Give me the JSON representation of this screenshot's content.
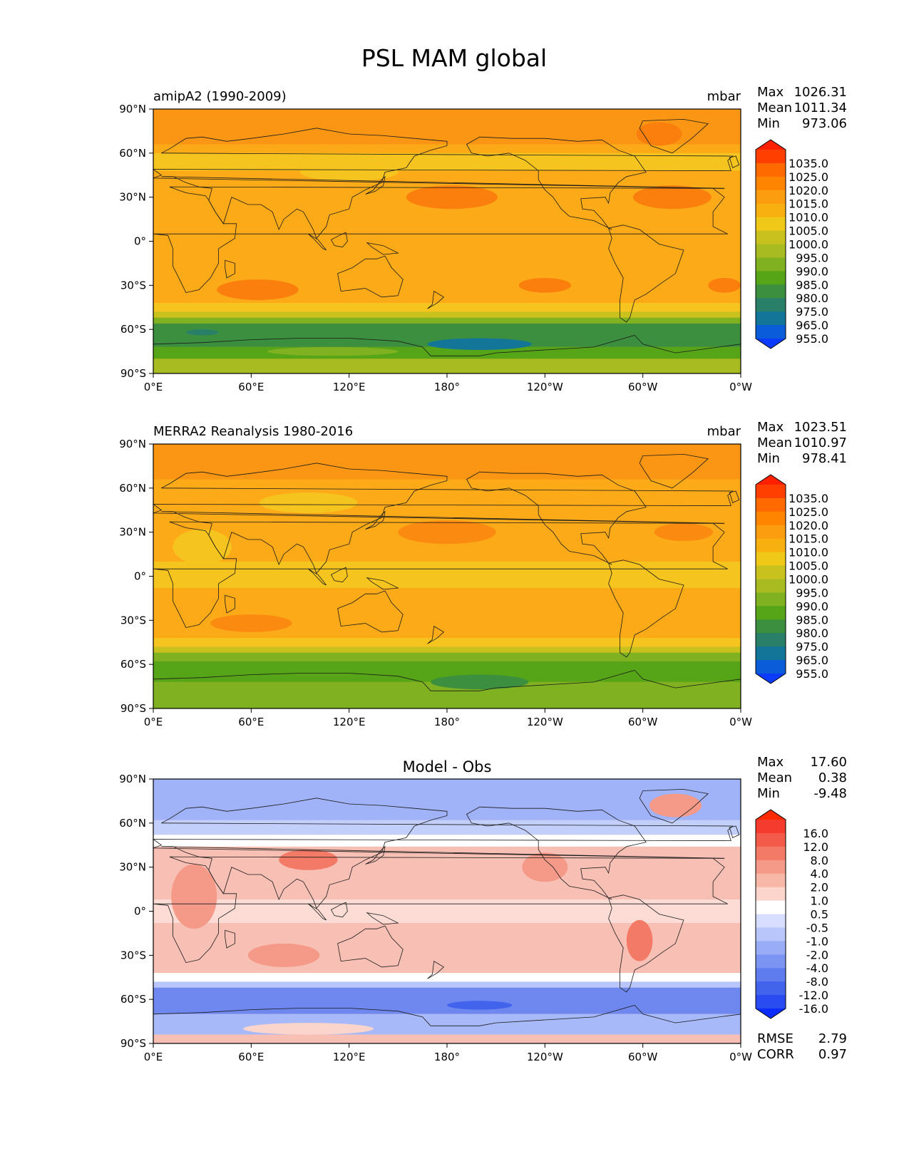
{
  "figure": {
    "suptitle": "PSL MAM global"
  },
  "axes": {
    "lat_labels": [
      "90°N",
      "60°N",
      "30°N",
      "0°",
      "30°S",
      "60°S",
      "90°S"
    ],
    "lon_labels": [
      "0°E",
      "60°E",
      "120°E",
      "180°",
      "120°W",
      "60°W",
      "0°W"
    ]
  },
  "panels": [
    {
      "id": "test",
      "title_left": "amipA2 (1990-2009)",
      "title_center": "",
      "title_right": "mbar",
      "stats": [
        {
          "label": "Max",
          "value": "1026.31"
        },
        {
          "label": "Mean",
          "value": "1011.34"
        },
        {
          "label": "Min",
          "value": "973.06"
        }
      ],
      "colorbar": {
        "labels": [
          "1035.0",
          "1025.0",
          "1020.0",
          "1015.0",
          "1010.0",
          "1005.0",
          "1000.0",
          "995.0",
          "990.0",
          "985.0",
          "980.0",
          "975.0",
          "965.0",
          "955.0"
        ],
        "colors": [
          "#ff2000",
          "#ff3f00",
          "#ff6a00",
          "#ff8500",
          "#fc9c0f",
          "#f7b010",
          "#f0c818",
          "#c9c21e",
          "#a8bc22",
          "#7fb120",
          "#56a518",
          "#3b8f3e",
          "#2a7f68",
          "#137699",
          "#0a5cd8",
          "#0a3bff"
        ]
      },
      "fields": {
        "background": "#fcaa18",
        "bands": [
          {
            "lat": [
              90,
              66
            ],
            "color": "#fa9614"
          },
          {
            "lat": [
              60,
              48
            ],
            "color": "#f6c41e"
          },
          {
            "lat": [
              -42,
              -48
            ],
            "color": "#f6c41e"
          },
          {
            "lat": [
              -48,
              -52
            ],
            "color": "#c9c21e"
          },
          {
            "lat": [
              -52,
              -56
            ],
            "color": "#7fb120"
          },
          {
            "lat": [
              -56,
              -72
            ],
            "color": "#3b8f3e"
          },
          {
            "lat": [
              -72,
              -80
            ],
            "color": "#56a518"
          },
          {
            "lat": [
              -80,
              -90
            ],
            "color": "#a8bc22"
          }
        ],
        "blobs": [
          {
            "lon": 183,
            "lat": 30,
            "rlon": 28,
            "rlat": 8,
            "color": "#fa7f0c"
          },
          {
            "lon": 318,
            "lat": 30,
            "rlon": 24,
            "rlat": 8,
            "color": "#fa7f0c"
          },
          {
            "lon": 64,
            "lat": -33,
            "rlon": 25,
            "rlat": 7,
            "color": "#fa7f0c"
          },
          {
            "lon": 240,
            "lat": -30,
            "rlon": 16,
            "rlat": 5,
            "color": "#fa7f0c"
          },
          {
            "lon": 350,
            "lat": -30,
            "rlon": 10,
            "rlat": 5,
            "color": "#fa7f0c"
          },
          {
            "lon": 310,
            "lat": 73,
            "rlon": 14,
            "rlat": 8,
            "color": "#fa7f0c"
          },
          {
            "lon": 120,
            "lat": 47,
            "rlon": 30,
            "rlat": 6,
            "color": "#f6c41e"
          },
          {
            "lon": 200,
            "lat": -70,
            "rlon": 32,
            "rlat": 4,
            "color": "#137699"
          },
          {
            "lon": 30,
            "lat": -62,
            "rlon": 10,
            "rlat": 2,
            "color": "#2a7f68"
          },
          {
            "lon": 110,
            "lat": -75,
            "rlon": 40,
            "rlat": 3,
            "color": "#7fb120"
          }
        ]
      }
    },
    {
      "id": "ref",
      "title_left": "MERRA2 Reanalysis 1980-2016",
      "title_center": "",
      "title_right": "mbar",
      "stats": [
        {
          "label": "Max",
          "value": "1023.51"
        },
        {
          "label": "Mean",
          "value": "1010.97"
        },
        {
          "label": "Min",
          "value": "978.41"
        }
      ],
      "colorbar": {
        "labels": [
          "1035.0",
          "1025.0",
          "1020.0",
          "1015.0",
          "1010.0",
          "1005.0",
          "1000.0",
          "995.0",
          "990.0",
          "985.0",
          "980.0",
          "975.0",
          "965.0",
          "955.0"
        ],
        "colors": [
          "#ff2000",
          "#ff3f00",
          "#ff6a00",
          "#ff8500",
          "#fc9c0f",
          "#f7b010",
          "#f0c818",
          "#c9c21e",
          "#a8bc22",
          "#7fb120",
          "#56a518",
          "#3b8f3e",
          "#2a7f68",
          "#137699",
          "#0a5cd8",
          "#0a3bff"
        ]
      },
      "fields": {
        "background": "#fcaa18",
        "bands": [
          {
            "lat": [
              90,
              66
            ],
            "color": "#fa9614"
          },
          {
            "lat": [
              10,
              -8
            ],
            "color": "#f6c41e"
          },
          {
            "lat": [
              -42,
              -48
            ],
            "color": "#f6c41e"
          },
          {
            "lat": [
              -48,
              -52
            ],
            "color": "#c9c21e"
          },
          {
            "lat": [
              -52,
              -58
            ],
            "color": "#7fb120"
          },
          {
            "lat": [
              -58,
              -72
            ],
            "color": "#56a518"
          },
          {
            "lat": [
              -72,
              -90
            ],
            "color": "#7fb120"
          }
        ],
        "blobs": [
          {
            "lon": 180,
            "lat": 30,
            "rlon": 30,
            "rlat": 8,
            "color": "#fa8a10"
          },
          {
            "lon": 325,
            "lat": 30,
            "rlon": 18,
            "rlat": 6,
            "color": "#fa8a10"
          },
          {
            "lon": 60,
            "lat": -32,
            "rlon": 25,
            "rlat": 6,
            "color": "#fa8a10"
          },
          {
            "lon": 95,
            "lat": 50,
            "rlon": 30,
            "rlat": 7,
            "color": "#f6c41e"
          },
          {
            "lon": 30,
            "lat": 20,
            "rlon": 18,
            "rlat": 12,
            "color": "#f6c41e"
          },
          {
            "lon": 200,
            "lat": -72,
            "rlon": 30,
            "rlat": 5,
            "color": "#3b8f3e"
          }
        ]
      }
    },
    {
      "id": "diff",
      "title_left": "",
      "title_center": "Model - Obs",
      "title_right": "",
      "stats": [
        {
          "label": "Max",
          "value": "17.60"
        },
        {
          "label": "Mean",
          "value": "0.38"
        },
        {
          "label": "Min",
          "value": "-9.48"
        }
      ],
      "extra_stats": [
        {
          "label": "RMSE",
          "value": "2.79"
        },
        {
          "label": "CORR",
          "value": "0.97"
        }
      ],
      "colorbar": {
        "labels": [
          "16.0",
          "12.0",
          "8.0",
          "4.0",
          "2.0",
          "1.0",
          "0.5",
          "-0.5",
          "-1.0",
          "-2.0",
          "-4.0",
          "-8.0",
          "-12.0",
          "-16.0"
        ],
        "colors": [
          "#ff2a00",
          "#f53a2e",
          "#f35a4a",
          "#f37a66",
          "#f59a88",
          "#f8b8a8",
          "#fbd5cb",
          "#ffffff",
          "#d7deff",
          "#b8c6fb",
          "#99adf7",
          "#7c95f3",
          "#5f7cef",
          "#4263eb",
          "#2a4bf0",
          "#0a2cff"
        ]
      },
      "fields": {
        "background": "#f8c0b4",
        "bands": [
          {
            "lat": [
              90,
              62
            ],
            "color": "#a0b2f8"
          },
          {
            "lat": [
              62,
              52
            ],
            "color": "#c3cffb"
          },
          {
            "lat": [
              52,
              44
            ],
            "color": "#ffffff"
          },
          {
            "lat": [
              8,
              -8
            ],
            "color": "#fcdcd4"
          },
          {
            "lat": [
              -42,
              -48
            ],
            "color": "#ffffff"
          },
          {
            "lat": [
              -48,
              -52
            ],
            "color": "#b8c6fb"
          },
          {
            "lat": [
              -52,
              -70
            ],
            "color": "#6f88f0"
          },
          {
            "lat": [
              -70,
              -84
            ],
            "color": "#a8b9f9"
          },
          {
            "lat": [
              -84,
              -90
            ],
            "color": "#f8c0b4"
          }
        ],
        "blobs": [
          {
            "lon": 95,
            "lat": 35,
            "rlon": 18,
            "rlat": 7,
            "color": "#f37a66"
          },
          {
            "lon": 25,
            "lat": 10,
            "rlon": 14,
            "rlat": 22,
            "color": "#f59a88"
          },
          {
            "lon": 298,
            "lat": -20,
            "rlon": 8,
            "rlat": 14,
            "color": "#f37a66"
          },
          {
            "lon": 240,
            "lat": 30,
            "rlon": 14,
            "rlat": 10,
            "color": "#f59a88"
          },
          {
            "lon": 320,
            "lat": 72,
            "rlon": 16,
            "rlat": 8,
            "color": "#f59a88"
          },
          {
            "lon": 200,
            "lat": -64,
            "rlon": 20,
            "rlat": 3,
            "color": "#4263eb"
          },
          {
            "lon": 95,
            "lat": -80,
            "rlon": 40,
            "rlat": 4,
            "color": "#fbd5cb"
          },
          {
            "lon": 80,
            "lat": -30,
            "rlon": 22,
            "rlat": 8,
            "color": "#f59a88"
          }
        ]
      }
    }
  ]
}
